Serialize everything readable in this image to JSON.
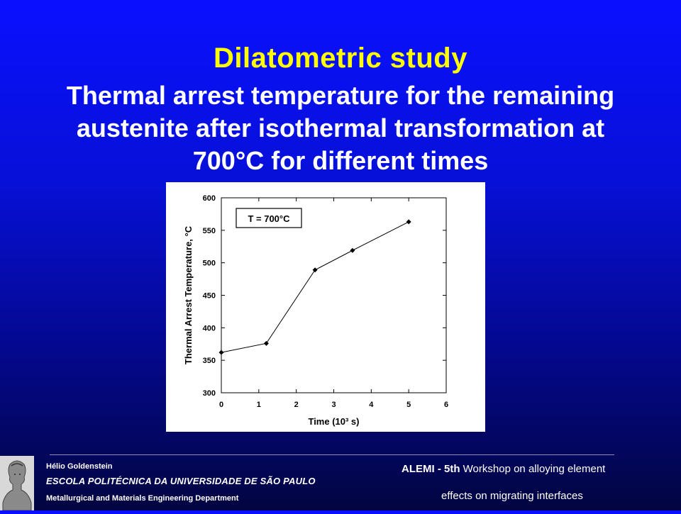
{
  "slide": {
    "title": "Dilatometric study",
    "subtitle_line1": "Thermal arrest temperature for the remaining",
    "subtitle_line2": "austenite after isothermal transformation at",
    "subtitle_line3": "700°C for different times"
  },
  "footer": {
    "author": "Hélio Goldenstein",
    "school": "ESCOLA POLITÉCNICA DA UNIVERSIDADE DE SÃO PAULO",
    "department": "Metallurgical and Materials Engineering Department",
    "workshop_bold": "ALEMI - 5th",
    "workshop_rest": " Workshop on alloying element",
    "workshop_line2": "effects on migrating interfaces"
  },
  "icons": {
    "logo": "bust-logo-icon"
  },
  "chart_data": {
    "type": "line",
    "xlabel": "Time (10³ s)",
    "ylabel": "Thermal Arrest Temperature, °C",
    "annotation": "T = 700°C",
    "xlim": [
      0,
      6
    ],
    "ylim": [
      300,
      600
    ],
    "xticks": [
      0,
      1,
      2,
      3,
      4,
      5,
      6
    ],
    "yticks": [
      300,
      350,
      400,
      450,
      500,
      550,
      600
    ],
    "series": [
      {
        "x": [
          0,
          1.2,
          2.5,
          3.5,
          5.0
        ],
        "values": [
          362,
          376,
          489,
          519,
          563
        ]
      }
    ]
  }
}
